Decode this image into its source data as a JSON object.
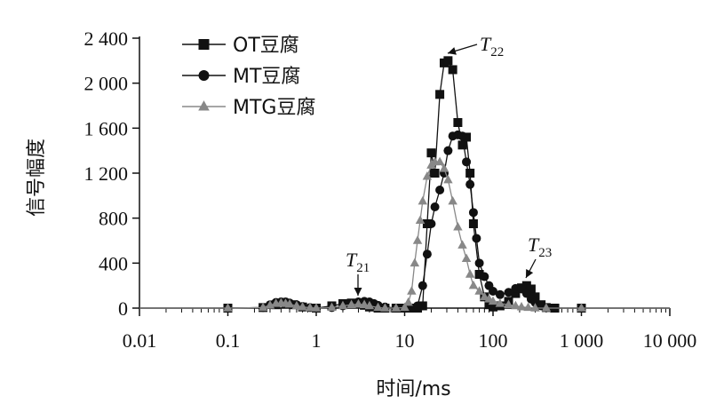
{
  "chart_data": {
    "type": "line",
    "xlabel": "时间/ms",
    "ylabel": "信号幅度",
    "x_scale": "log",
    "xlim": [
      0.01,
      10000
    ],
    "ylim": [
      0,
      2400
    ],
    "x_ticks": [
      0.01,
      0.1,
      1,
      10,
      100,
      1000,
      10000
    ],
    "x_tick_labels": [
      "0.01",
      "0.1",
      "1",
      "10",
      "100",
      "1 000",
      "10 000"
    ],
    "y_ticks": [
      0,
      400,
      800,
      1200,
      1600,
      2000,
      2400
    ],
    "y_tick_labels": [
      "0",
      "400",
      "800",
      "1 200",
      "1 600",
      "2 000",
      "2 400"
    ],
    "legend_position": "top-left",
    "series": [
      {
        "name": "OT豆腐",
        "marker": "square",
        "color": "#111111",
        "x": [
          0.01,
          0.1,
          0.25,
          0.35,
          0.45,
          0.55,
          0.7,
          1,
          1.5,
          2,
          2.5,
          3,
          3.5,
          4,
          5,
          6,
          8,
          10,
          12,
          14,
          16,
          18,
          20,
          22,
          25,
          28,
          31,
          35,
          40,
          45,
          50,
          55,
          60,
          70,
          80,
          90,
          100,
          120,
          150,
          180,
          210,
          240,
          270,
          300,
          350,
          400,
          500,
          1000,
          10000
        ],
        "y": [
          0,
          0,
          5,
          30,
          40,
          30,
          10,
          0,
          20,
          40,
          45,
          40,
          25,
          10,
          0,
          0,
          0,
          0,
          0,
          0,
          20,
          750,
          1380,
          1200,
          1900,
          2180,
          2200,
          2120,
          1650,
          1450,
          1520,
          1200,
          750,
          300,
          100,
          30,
          10,
          20,
          60,
          130,
          180,
          200,
          170,
          100,
          30,
          5,
          0,
          0,
          0
        ]
      },
      {
        "name": "MT豆腐",
        "marker": "circle",
        "color": "#111111",
        "x": [
          0.01,
          0.1,
          0.25,
          0.3,
          0.35,
          0.4,
          0.45,
          0.5,
          0.6,
          0.7,
          0.85,
          1,
          1.5,
          2,
          2.5,
          3,
          3.5,
          4,
          4.5,
          5,
          6,
          8,
          10,
          12,
          14,
          16,
          18,
          20,
          22,
          25,
          28,
          31,
          35,
          40,
          45,
          50,
          55,
          60,
          65,
          70,
          80,
          90,
          100,
          120,
          150,
          180,
          210,
          240,
          270,
          300,
          350,
          400,
          500,
          1000,
          10000
        ],
        "y": [
          0,
          0,
          5,
          30,
          50,
          55,
          55,
          45,
          30,
          15,
          5,
          0,
          5,
          20,
          40,
          55,
          60,
          55,
          40,
          25,
          10,
          0,
          0,
          0,
          20,
          200,
          480,
          750,
          900,
          1050,
          1200,
          1400,
          1530,
          1540,
          1530,
          1300,
          1100,
          850,
          620,
          400,
          280,
          200,
          150,
          120,
          140,
          175,
          170,
          130,
          80,
          50,
          20,
          5,
          0,
          0,
          0
        ]
      },
      {
        "name": "MTG豆腐",
        "marker": "triangle",
        "color": "#888888",
        "x": [
          0.01,
          0.1,
          0.25,
          0.3,
          0.35,
          0.4,
          0.45,
          0.5,
          0.6,
          0.7,
          0.85,
          1,
          1.5,
          2,
          2.5,
          3,
          3.5,
          4,
          5,
          6,
          8,
          10,
          11,
          12,
          13,
          14,
          15,
          16,
          18,
          20,
          22,
          25,
          28,
          31,
          35,
          40,
          45,
          50,
          55,
          60,
          70,
          80,
          90,
          100,
          120,
          150,
          180,
          210,
          250,
          300,
          400,
          1000,
          10000
        ],
        "y": [
          0,
          0,
          5,
          25,
          40,
          45,
          40,
          35,
          20,
          10,
          3,
          0,
          5,
          20,
          30,
          35,
          30,
          20,
          5,
          0,
          0,
          5,
          50,
          150,
          400,
          600,
          780,
          950,
          1170,
          1270,
          1300,
          1300,
          1240,
          1140,
          950,
          720,
          560,
          440,
          300,
          200,
          150,
          100,
          80,
          60,
          40,
          30,
          20,
          10,
          5,
          0,
          0,
          0,
          0
        ]
      }
    ],
    "annotations": [
      {
        "label": "T",
        "sub": "21"
      },
      {
        "label": "T",
        "sub": "22"
      },
      {
        "label": "T",
        "sub": "23"
      }
    ]
  }
}
